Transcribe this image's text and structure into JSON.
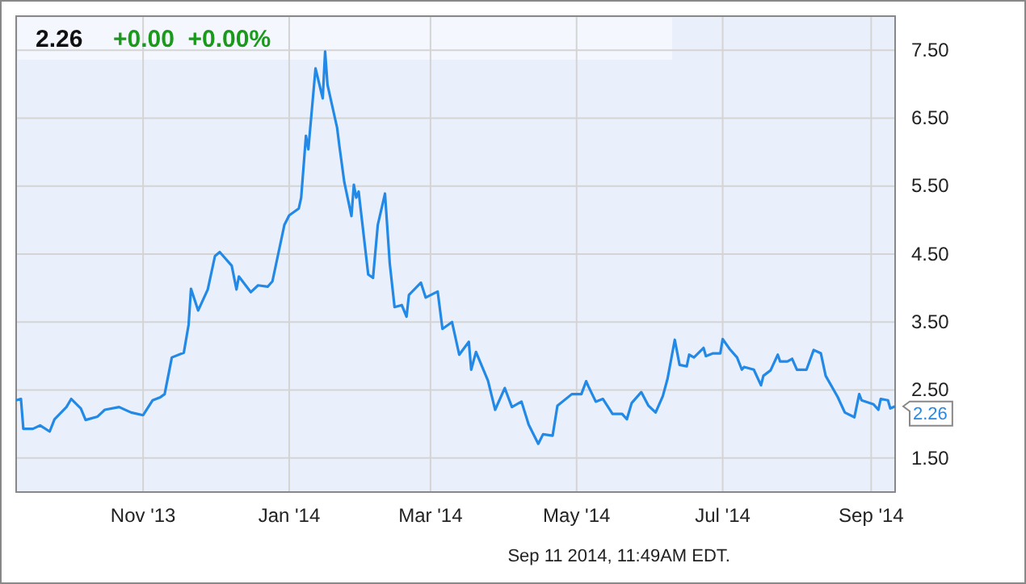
{
  "chart_data": {
    "type": "line",
    "title": "2.26",
    "subtitle": "+0.00  +0.00%",
    "xlim": [
      "2013-09-09",
      "2014-09-11"
    ],
    "xticks": [
      {
        "value": "2013-11-01",
        "label": "Nov '13"
      },
      {
        "value": "2014-01-01",
        "label": "Jan '14"
      },
      {
        "value": "2014-03-01",
        "label": "Mar '14"
      },
      {
        "value": "2014-05-01",
        "label": "May '14"
      },
      {
        "value": "2014-07-01",
        "label": "Jul '14"
      },
      {
        "value": "2014-09-01",
        "label": "Sep '14"
      }
    ],
    "ylim": [
      1,
      8
    ],
    "yticks": [
      {
        "value": 1.5,
        "label": "1.50"
      },
      {
        "value": 2.5,
        "label": "2.50"
      },
      {
        "value": 3.5,
        "label": "3.50"
      },
      {
        "value": 4.5,
        "label": "4.50"
      },
      {
        "value": 5.5,
        "label": "5.50"
      },
      {
        "value": 6.5,
        "label": "6.50"
      },
      {
        "value": 7.5,
        "label": "7.50"
      }
    ],
    "grid": true,
    "marker": "none",
    "line_style": "solid",
    "annotations": [
      {
        "text": "2.26",
        "x": "2014-09-11",
        "y": 2.26
      },
      "Sep 11 2014, 11:49AM EDT."
    ],
    "series": [
      {
        "color": "#2389e6",
        "x": [
          "2013-09-09",
          "2013-09-11",
          "2013-09-12",
          "2013-09-16",
          "2013-09-19",
          "2013-09-23",
          "2013-09-25",
          "2013-09-30",
          "2013-10-02",
          "2013-10-06",
          "2013-10-08",
          "2013-10-13",
          "2013-10-16",
          "2013-10-22",
          "2013-10-27",
          "2013-11-01",
          "2013-11-05",
          "2013-11-08",
          "2013-11-10",
          "2013-11-13",
          "2013-11-18",
          "2013-11-20",
          "2013-11-21",
          "2013-11-24",
          "2013-11-28",
          "2013-12-01",
          "2013-12-03",
          "2013-12-08",
          "2013-12-10",
          "2013-12-11",
          "2013-12-16",
          "2013-12-19",
          "2013-12-23",
          "2013-12-25",
          "2013-12-30",
          "2014-01-01",
          "2014-01-05",
          "2014-01-06",
          "2014-01-08",
          "2014-01-09",
          "2014-01-12",
          "2014-01-15",
          "2014-01-16",
          "2014-01-17",
          "2014-01-21",
          "2014-01-22",
          "2014-01-24",
          "2014-01-27",
          "2014-01-28",
          "2014-01-29",
          "2014-01-30",
          "2014-02-03",
          "2014-02-05",
          "2014-02-07",
          "2014-02-10",
          "2014-02-12",
          "2014-02-14",
          "2014-02-17",
          "2014-02-19",
          "2014-02-20",
          "2014-02-25",
          "2014-02-27",
          "2014-03-04",
          "2014-03-06",
          "2014-03-10",
          "2014-03-13",
          "2014-03-17",
          "2014-03-18",
          "2014-03-20",
          "2014-03-25",
          "2014-03-28",
          "2014-04-01",
          "2014-04-04",
          "2014-04-08",
          "2014-04-11",
          "2014-04-15",
          "2014-04-17",
          "2014-04-21",
          "2014-04-23",
          "2014-04-29",
          "2014-05-03",
          "2014-05-05",
          "2014-05-06",
          "2014-05-09",
          "2014-05-12",
          "2014-05-16",
          "2014-05-20",
          "2014-05-22",
          "2014-05-24",
          "2014-05-28",
          "2014-05-31",
          "2014-06-03",
          "2014-06-06",
          "2014-06-08",
          "2014-06-11",
          "2014-06-13",
          "2014-06-16",
          "2014-06-17",
          "2014-06-19",
          "2014-06-23",
          "2014-06-24",
          "2014-06-27",
          "2014-06-30",
          "2014-07-01",
          "2014-07-04",
          "2014-07-07",
          "2014-07-09",
          "2014-07-10",
          "2014-07-14",
          "2014-07-17",
          "2014-07-18",
          "2014-07-21",
          "2014-07-24",
          "2014-07-25",
          "2014-07-28",
          "2014-07-30",
          "2014-08-01",
          "2014-08-05",
          "2014-08-08",
          "2014-08-11",
          "2014-08-13",
          "2014-08-18",
          "2014-08-21",
          "2014-08-25",
          "2014-08-27",
          "2014-08-28",
          "2014-09-02",
          "2014-09-04",
          "2014-09-05",
          "2014-09-08",
          "2014-09-09",
          "2014-09-11"
        ],
        "values": [
          2.35,
          2.37,
          1.93,
          1.93,
          1.98,
          1.89,
          2.07,
          2.25,
          2.37,
          2.23,
          2.06,
          2.11,
          2.21,
          2.25,
          2.17,
          2.13,
          2.35,
          2.39,
          2.44,
          2.98,
          3.05,
          3.46,
          3.99,
          3.67,
          3.98,
          4.47,
          4.53,
          4.33,
          3.98,
          4.17,
          3.94,
          4.04,
          4.02,
          4.1,
          4.93,
          5.07,
          5.17,
          5.33,
          6.24,
          6.04,
          7.23,
          6.79,
          7.48,
          6.99,
          6.36,
          6.08,
          5.56,
          5.06,
          5.52,
          5.33,
          5.42,
          4.2,
          4.15,
          4.93,
          5.39,
          4.36,
          3.72,
          3.75,
          3.58,
          3.9,
          4.08,
          3.86,
          3.95,
          3.4,
          3.5,
          3.02,
          3.21,
          2.8,
          3.06,
          2.64,
          2.21,
          2.53,
          2.25,
          2.33,
          1.99,
          1.71,
          1.85,
          1.83,
          2.27,
          2.44,
          2.44,
          2.63,
          2.55,
          2.33,
          2.37,
          2.15,
          2.15,
          2.07,
          2.31,
          2.47,
          2.27,
          2.17,
          2.41,
          2.67,
          3.24,
          2.87,
          2.85,
          3.02,
          2.98,
          3.12,
          3.0,
          3.04,
          3.04,
          3.25,
          3.1,
          2.98,
          2.8,
          2.84,
          2.8,
          2.57,
          2.71,
          2.79,
          3.02,
          2.92,
          2.92,
          2.96,
          2.8,
          2.8,
          3.09,
          3.04,
          2.71,
          2.4,
          2.17,
          2.1,
          2.44,
          2.35,
          2.29,
          2.21,
          2.37,
          2.35,
          2.23,
          2.26
        ]
      }
    ]
  }
}
